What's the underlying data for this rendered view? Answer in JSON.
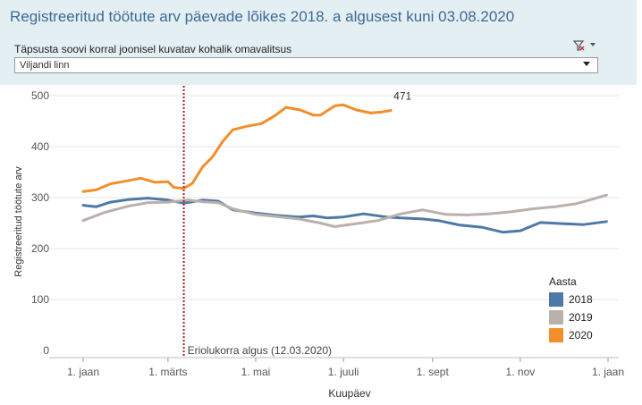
{
  "header": {
    "title": "Registreeritud töötute arv päevade lõikes 2018. a algusest kuni 03.08.2020",
    "filter_label": "Täpsusta soovi korral  joonisel kuvatav kohalik omavalitsus",
    "filter_value": "Viljandi linn",
    "clear_filter_icon": "clear-filter-icon",
    "menu_icon": "dropdown-caret-icon"
  },
  "chart_data": {
    "type": "line",
    "title": "",
    "xlabel": "Kuupäev",
    "ylabel": "Registreeritud töötute arv",
    "x_domain": [
      "01-01",
      "01-01 (next year)"
    ],
    "x_ticks": [
      "1. jaan",
      "1. märts",
      "1. mai",
      "1. juuli",
      "1. sept",
      "1. nov",
      "1. jaan"
    ],
    "y_ticks": [
      0,
      100,
      200,
      300,
      400,
      500
    ],
    "ylim": [
      0,
      500
    ],
    "grid": "horizontal",
    "reference_line": {
      "date": "03-12",
      "label": "Eriolukorra algus (12.03.2020)",
      "color": "#b21e2c"
    },
    "end_label": {
      "series": "2020",
      "date": "08-03",
      "value": 471,
      "text": "471"
    },
    "legend": {
      "title": "Aasta",
      "position": "right"
    },
    "series": [
      {
        "name": "2018",
        "color": "#4e79a7",
        "points": [
          [
            "01-01",
            285
          ],
          [
            "01-10",
            282
          ],
          [
            "01-20",
            291
          ],
          [
            "02-01",
            296
          ],
          [
            "02-15",
            299
          ],
          [
            "03-01",
            295
          ],
          [
            "03-12",
            289
          ],
          [
            "03-25",
            295
          ],
          [
            "04-05",
            293
          ],
          [
            "04-15",
            276
          ],
          [
            "04-30",
            270
          ],
          [
            "05-15",
            265
          ],
          [
            "05-31",
            262
          ],
          [
            "06-10",
            264
          ],
          [
            "06-20",
            260
          ],
          [
            "07-01",
            262
          ],
          [
            "07-15",
            268
          ],
          [
            "07-31",
            262
          ],
          [
            "08-10",
            260
          ],
          [
            "08-25",
            258
          ],
          [
            "09-05",
            255
          ],
          [
            "09-20",
            246
          ],
          [
            "10-05",
            242
          ],
          [
            "10-20",
            232
          ],
          [
            "11-01",
            235
          ],
          [
            "11-15",
            251
          ],
          [
            "11-30",
            249
          ],
          [
            "12-15",
            247
          ],
          [
            "12-31",
            253
          ]
        ]
      },
      {
        "name": "2019",
        "color": "#bab0ac",
        "points": [
          [
            "01-01",
            255
          ],
          [
            "01-15",
            270
          ],
          [
            "02-01",
            283
          ],
          [
            "02-15",
            290
          ],
          [
            "03-01",
            291
          ],
          [
            "03-15",
            295
          ],
          [
            "03-25",
            292
          ],
          [
            "04-05",
            290
          ],
          [
            "04-15",
            278
          ],
          [
            "05-01",
            267
          ],
          [
            "05-15",
            263
          ],
          [
            "05-31",
            258
          ],
          [
            "06-15",
            250
          ],
          [
            "06-25",
            243
          ],
          [
            "07-10",
            249
          ],
          [
            "07-25",
            255
          ],
          [
            "08-10",
            268
          ],
          [
            "08-25",
            276
          ],
          [
            "09-10",
            267
          ],
          [
            "09-25",
            266
          ],
          [
            "10-10",
            268
          ],
          [
            "10-25",
            272
          ],
          [
            "11-10",
            278
          ],
          [
            "11-25",
            282
          ],
          [
            "12-10",
            288
          ],
          [
            "12-20",
            296
          ],
          [
            "12-31",
            305
          ]
        ]
      },
      {
        "name": "2020",
        "color": "#f28e2b",
        "points": [
          [
            "01-01",
            312
          ],
          [
            "01-10",
            315
          ],
          [
            "01-20",
            327
          ],
          [
            "02-01",
            333
          ],
          [
            "02-10",
            338
          ],
          [
            "02-20",
            330
          ],
          [
            "03-01",
            331
          ],
          [
            "03-05",
            320
          ],
          [
            "03-12",
            318
          ],
          [
            "03-18",
            328
          ],
          [
            "03-25",
            360
          ],
          [
            "04-01",
            380
          ],
          [
            "04-08",
            410
          ],
          [
            "04-15",
            433
          ],
          [
            "04-25",
            440
          ],
          [
            "05-05",
            445
          ],
          [
            "05-15",
            462
          ],
          [
            "05-22",
            477
          ],
          [
            "06-01",
            472
          ],
          [
            "06-10",
            462
          ],
          [
            "06-15",
            462
          ],
          [
            "06-25",
            480
          ],
          [
            "07-01",
            482
          ],
          [
            "07-10",
            472
          ],
          [
            "07-20",
            466
          ],
          [
            "07-28",
            468
          ],
          [
            "08-03",
            471
          ]
        ]
      }
    ]
  }
}
